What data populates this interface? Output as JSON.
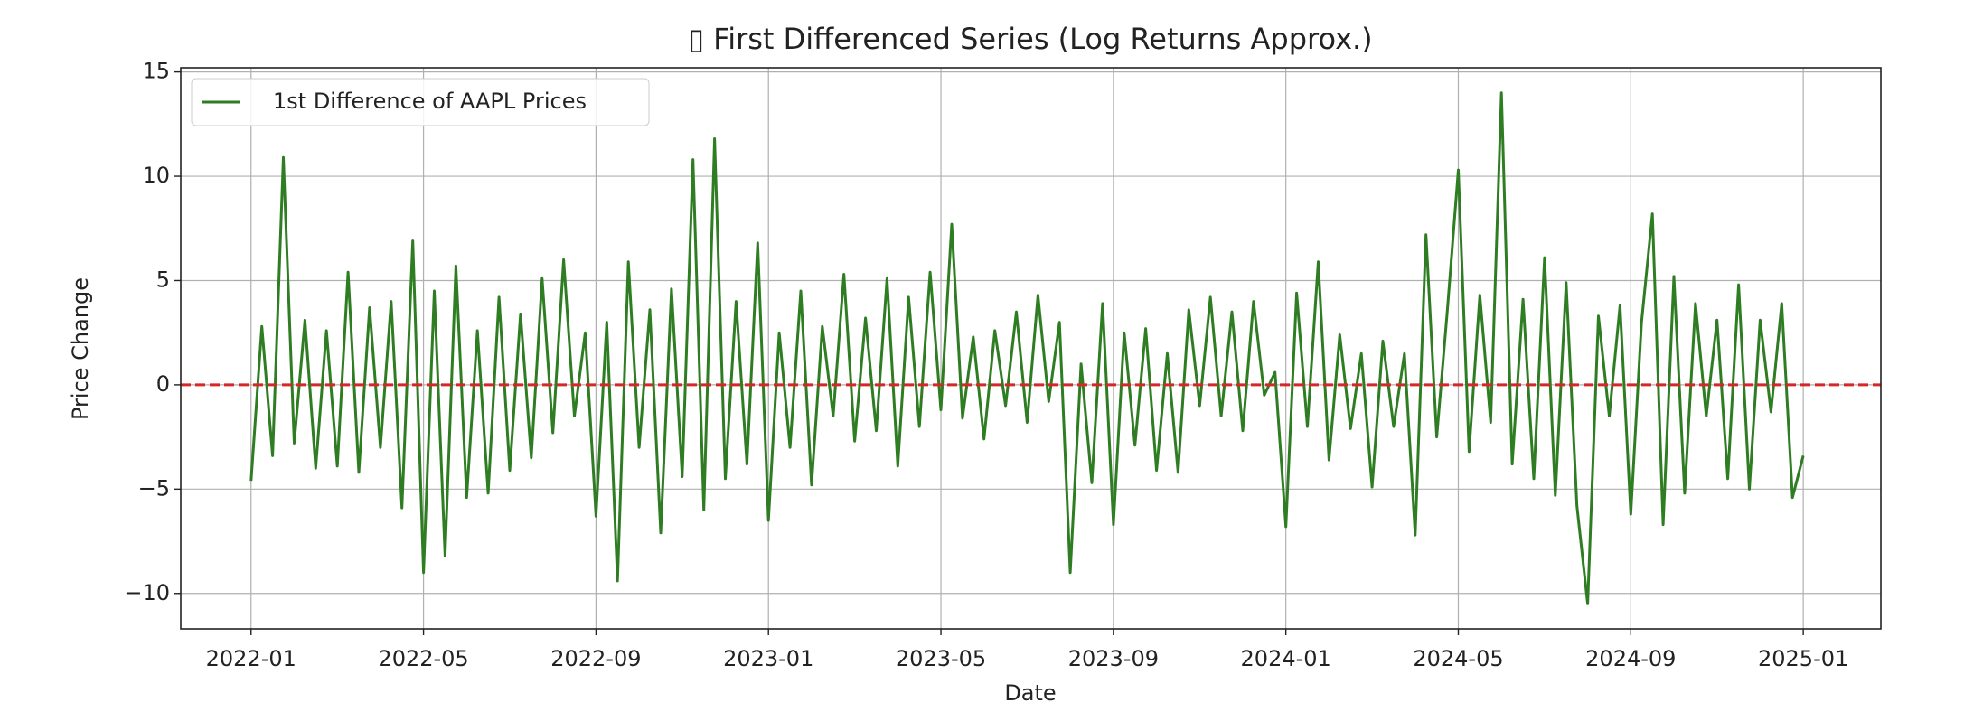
{
  "chart_data": {
    "type": "line",
    "title": "▯ First Differenced Series (Log Returns Approx.)",
    "x_label": "Date",
    "y_label": "Price Change",
    "x": [
      0,
      0.25,
      0.5,
      0.75,
      1,
      1.25,
      1.5,
      1.75,
      2,
      2.25,
      2.5,
      2.75,
      3,
      3.25,
      3.5,
      3.75,
      4,
      4.25,
      4.5,
      4.75,
      5,
      5.25,
      5.5,
      5.75,
      6,
      6.25,
      6.5,
      6.75,
      7,
      7.25,
      7.5,
      7.75,
      8,
      8.25,
      8.5,
      8.75,
      9,
      9.25,
      9.5,
      9.75,
      10,
      10.25,
      10.5,
      10.75,
      11,
      11.25,
      11.5,
      11.75,
      12,
      12.25,
      12.5,
      12.75,
      13,
      13.25,
      13.5,
      13.75,
      14,
      14.25,
      14.5,
      14.75,
      15,
      15.25,
      15.5,
      15.75,
      16,
      16.25,
      16.5,
      16.75,
      17,
      17.25,
      17.5,
      17.75,
      18,
      18.25,
      18.5,
      18.75,
      19,
      19.25,
      19.5,
      19.75,
      20,
      20.25,
      20.5,
      20.75,
      21,
      21.25,
      21.5,
      21.75,
      22,
      22.25,
      22.5,
      22.75,
      23,
      23.25,
      23.5,
      23.75,
      24,
      24.25,
      24.5,
      24.75,
      25,
      25.25,
      25.5,
      25.75,
      26,
      26.25,
      26.5,
      26.75,
      27,
      27.25,
      27.5,
      27.75,
      28,
      28.25,
      28.5,
      28.75,
      29,
      29.25,
      29.5,
      29.75,
      30,
      30.25,
      30.5,
      30.75,
      31,
      31.25,
      31.5,
      31.75,
      32,
      32.25,
      32.5,
      32.75,
      33,
      33.25,
      33.5,
      33.75,
      34,
      34.25,
      34.5,
      34.75,
      35,
      35.25,
      35.5,
      35.75,
      36
    ],
    "series": [
      {
        "name": "1st Difference of AAPL Prices",
        "color": "#2f7d23",
        "values": [
          -4.6,
          2.8,
          -3.4,
          10.9,
          -2.8,
          3.1,
          -4.0,
          2.6,
          -3.9,
          5.4,
          -4.2,
          3.7,
          -3.0,
          4.0,
          -5.9,
          6.9,
          -9.0,
          4.5,
          -8.2,
          5.7,
          -5.4,
          2.6,
          -5.2,
          4.2,
          -4.1,
          3.4,
          -3.5,
          5.1,
          -2.3,
          6.0,
          -1.5,
          2.5,
          -6.3,
          3.0,
          -9.4,
          5.9,
          -3.0,
          3.6,
          -7.1,
          4.6,
          -4.4,
          10.8,
          -6.0,
          11.8,
          -4.5,
          4.0,
          -3.8,
          6.8,
          -6.5,
          2.5,
          -3.0,
          4.5,
          -4.8,
          2.8,
          -1.5,
          5.3,
          -2.7,
          3.2,
          -2.2,
          5.1,
          -3.9,
          4.2,
          -2.0,
          5.4,
          -1.2,
          7.7,
          -1.6,
          2.3,
          -2.6,
          2.6,
          -1.0,
          3.5,
          -1.8,
          4.3,
          -0.8,
          3.0,
          -9.0,
          1.0,
          -4.7,
          3.9,
          -6.7,
          2.5,
          -2.9,
          2.7,
          -4.1,
          1.5,
          -4.2,
          3.6,
          -1.0,
          4.2,
          -1.5,
          3.5,
          -2.2,
          4.0,
          -0.5,
          0.6,
          -6.8,
          4.4,
          -2.0,
          5.9,
          -3.6,
          2.4,
          -2.1,
          1.5,
          -4.9,
          2.1,
          -2.0,
          1.5,
          -7.2,
          7.2,
          -2.5,
          3.7,
          10.3,
          -3.2,
          4.3,
          -1.8,
          14.0,
          -3.8,
          4.1,
          -4.5,
          6.1,
          -5.3,
          4.9,
          -5.8,
          -10.5,
          3.3,
          -1.5,
          3.8,
          -6.2,
          3.0,
          8.2,
          -6.7,
          5.2,
          -5.2,
          3.9,
          -1.5,
          3.1,
          -4.5,
          4.8,
          -5.0,
          3.1,
          -1.3,
          3.9,
          -5.4,
          -3.4
        ]
      }
    ],
    "xlim": [
      -1.63,
      37.8
    ],
    "xticks": [
      {
        "value": 0,
        "label": "2022-01"
      },
      {
        "value": 4,
        "label": "2022-05"
      },
      {
        "value": 8,
        "label": "2022-09"
      },
      {
        "value": 12,
        "label": "2023-01"
      },
      {
        "value": 16,
        "label": "2023-05"
      },
      {
        "value": 20,
        "label": "2023-09"
      },
      {
        "value": 24,
        "label": "2024-01"
      },
      {
        "value": 28,
        "label": "2024-05"
      },
      {
        "value": 32,
        "label": "2024-09"
      },
      {
        "value": 36,
        "label": "2025-01"
      }
    ],
    "ylim": [
      -11.7,
      15.2
    ],
    "yticks": [
      {
        "value": -10,
        "label": "−10"
      },
      {
        "value": -5,
        "label": "−5"
      },
      0,
      5,
      10,
      15
    ],
    "hline": {
      "value": 0,
      "color": "#d62728"
    },
    "grid": true,
    "legend": "upper left"
  }
}
